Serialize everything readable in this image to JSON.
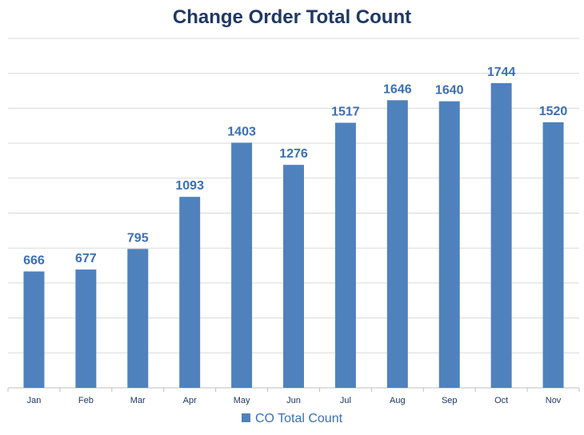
{
  "chart_data": {
    "type": "bar",
    "title": "Change Order Total Count",
    "categories": [
      "Jan",
      "Feb",
      "Mar",
      "Apr",
      "May",
      "Jun",
      "Jul",
      "Aug",
      "Sep",
      "Oct",
      "Nov"
    ],
    "series": [
      {
        "name": "CO Total Count",
        "values": [
          666,
          677,
          795,
          1093,
          1403,
          1276,
          1517,
          1646,
          1640,
          1744,
          1520
        ]
      }
    ],
    "ylim": [
      0,
      2000
    ],
    "grid": true,
    "legend": "bottom",
    "colors": {
      "bar": "#4f81bd",
      "title": "#1f3864",
      "label": "#3a6fb5",
      "grid": "#d9d9d9"
    }
  }
}
